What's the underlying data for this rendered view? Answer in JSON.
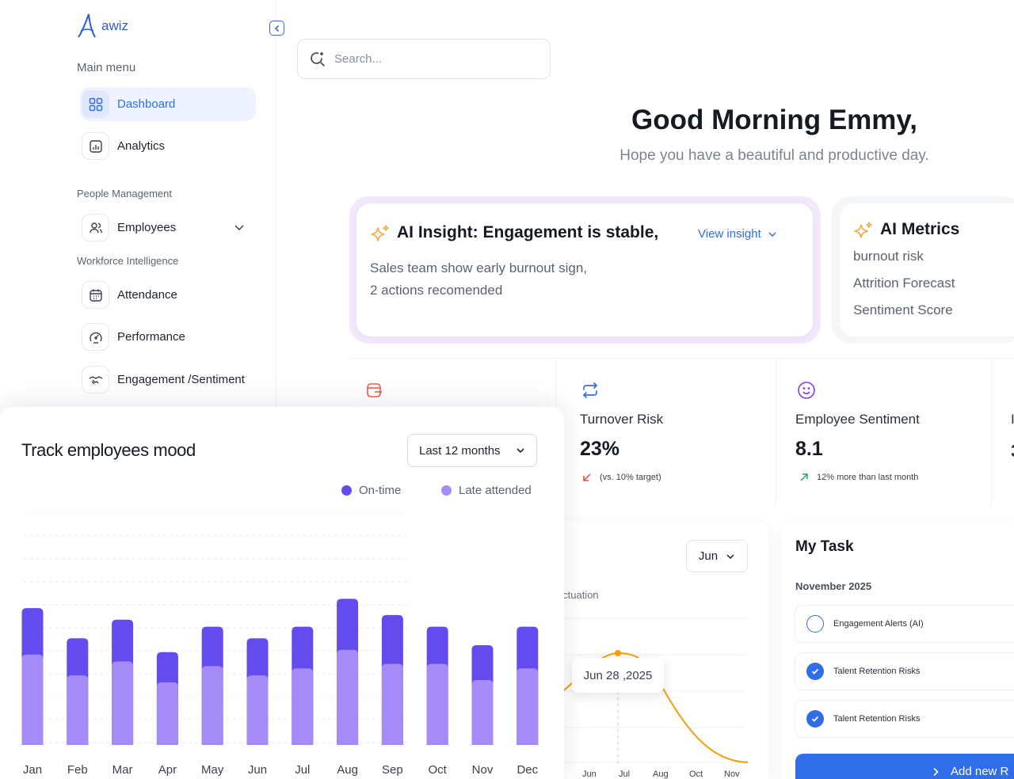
{
  "app": {
    "logo_text": "awiz"
  },
  "sidebar": {
    "main_menu_title": "Main menu",
    "main_items": [
      {
        "label": "Dashboard",
        "icon": "grid-icon",
        "active": true
      },
      {
        "label": "Analytics",
        "icon": "analytics-icon",
        "active": false
      }
    ],
    "people_title": "People Management",
    "employees_label": "Employees",
    "workforce_title": "Workforce Intelligence",
    "workforce_items": [
      {
        "label": "Attendance",
        "icon": "calendar-icon"
      },
      {
        "label": "Performance",
        "icon": "gauge-icon"
      },
      {
        "label": "Engagement /Sentiment",
        "icon": "handshake-icon"
      }
    ]
  },
  "search": {
    "placeholder": "Search..."
  },
  "greeting": {
    "title": "Good Morning Emmy,",
    "subtitle": "Hope you have a beautiful and productive day."
  },
  "insight": {
    "title": "AI Insight: Engagement is stable,",
    "link": "View insight",
    "desc_line1": "Sales team show early burnout sign,",
    "desc_line2": "2 actions recomended"
  },
  "metrics": {
    "title": "AI Metrics",
    "items": [
      "burnout risk",
      "Attrition Forecast",
      "Sentiment Score"
    ]
  },
  "stats": {
    "turnover": {
      "label": "Turnover Risk",
      "value": "23%",
      "note": "(vs. 10% target)"
    },
    "sentiment": {
      "label": "Employee Sentiment",
      "value": "8.1",
      "note": "12% more than last month"
    },
    "edge_label": "I",
    "edge_value": "3"
  },
  "line_card": {
    "select": "Jun",
    "subtitle": "luctuation",
    "tooltip": "Jun 28 ,2025",
    "x_labels": [
      "Jun",
      "Jul",
      "Aug",
      "Oct",
      "Nov"
    ]
  },
  "tasks": {
    "title": "My Task",
    "month": "November 2025",
    "items": [
      {
        "label": "Engagement Alerts (AI)",
        "done": false
      },
      {
        "label": "Talent Retention Risks",
        "done": true
      },
      {
        "label": "Talent Retention Risks",
        "done": true
      }
    ],
    "add_label": "Add new R"
  },
  "mood": {
    "title": "Track employees mood",
    "range": "Last 12 months"
  },
  "colors": {
    "accent": "#2f6ee8",
    "ontime": "#634bee",
    "late": "#a48bf8",
    "line": "#f59f0a"
  },
  "chart_data": {
    "type": "bar",
    "stacked": true,
    "categories": [
      "Jan",
      "Feb",
      "Mar",
      "Apr",
      "May",
      "Jun",
      "Jul",
      "Aug",
      "Sep",
      "Oct",
      "Nov",
      "Dec"
    ],
    "series": [
      {
        "name": "On-time",
        "values": [
          39,
          30,
          36,
          27,
          34,
          30,
          33,
          41,
          35,
          35,
          28,
          33
        ]
      },
      {
        "name": "Late attended",
        "values": [
          59,
          46,
          54,
          40,
          51,
          46,
          51,
          63,
          56,
          51,
          43,
          51
        ]
      }
    ],
    "legend": "top-right",
    "grid": true
  }
}
